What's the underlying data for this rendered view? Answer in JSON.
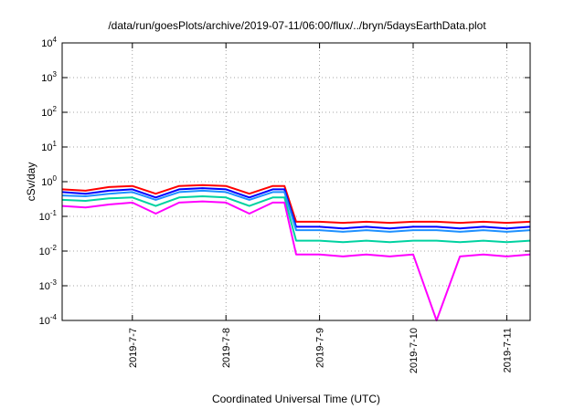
{
  "chart_data": {
    "type": "line",
    "title": "/data/run/goesPlots/archive/2019-07-11/06:00/flux/../bryn/5daysEarthData.plot",
    "xlabel": "Coordinated Universal Time (UTC)",
    "ylabel": "cSv/day",
    "y_scale": "log",
    "ylim": [
      0.0001,
      10000
    ],
    "y_ticks": [
      {
        "value": 0.0001,
        "base": "10",
        "exp": "-4"
      },
      {
        "value": 0.001,
        "base": "10",
        "exp": "-3"
      },
      {
        "value": 0.01,
        "base": "10",
        "exp": "-2"
      },
      {
        "value": 0.1,
        "base": "10",
        "exp": "-1"
      },
      {
        "value": 1,
        "base": "10",
        "exp": "0"
      },
      {
        "value": 10,
        "base": "10",
        "exp": "1"
      },
      {
        "value": 100,
        "base": "10",
        "exp": "2"
      },
      {
        "value": 1000,
        "base": "10",
        "exp": "3"
      },
      {
        "value": 10000,
        "base": "10",
        "exp": "4"
      }
    ],
    "x_type": "date",
    "xlim": [
      "2019-07-06T06:00",
      "2019-07-11T06:00"
    ],
    "x_ticks": [
      "2019-7-7",
      "2019-7-8",
      "2019-7-9",
      "2019-7-10",
      "2019-7-11"
    ],
    "x_tick_dates": [
      "2019-07-07",
      "2019-07-08",
      "2019-07-09",
      "2019-07-10",
      "2019-07-11"
    ],
    "grid": true,
    "x": [
      "2019-07-06T06:00",
      "2019-07-06T12:00",
      "2019-07-06T18:00",
      "2019-07-07T00:00",
      "2019-07-07T06:00",
      "2019-07-07T12:00",
      "2019-07-07T18:00",
      "2019-07-08T00:00",
      "2019-07-08T06:00",
      "2019-07-08T12:00",
      "2019-07-08T15:00",
      "2019-07-08T18:00",
      "2019-07-09T00:00",
      "2019-07-09T06:00",
      "2019-07-09T12:00",
      "2019-07-09T18:00",
      "2019-07-10T00:00",
      "2019-07-10T06:00",
      "2019-07-10T12:00",
      "2019-07-10T18:00",
      "2019-07-11T00:00",
      "2019-07-11T06:00"
    ],
    "series": [
      {
        "color": "#ff0000",
        "values": [
          0.6,
          0.55,
          0.7,
          0.75,
          0.45,
          0.75,
          0.8,
          0.75,
          0.45,
          0.75,
          0.75,
          0.07,
          0.07,
          0.065,
          0.07,
          0.065,
          0.07,
          0.07,
          0.065,
          0.07,
          0.065,
          0.07
        ]
      },
      {
        "color": "#0000ff",
        "values": [
          0.5,
          0.45,
          0.55,
          0.6,
          0.35,
          0.6,
          0.65,
          0.6,
          0.35,
          0.6,
          0.6,
          0.05,
          0.05,
          0.045,
          0.05,
          0.045,
          0.05,
          0.05,
          0.045,
          0.05,
          0.045,
          0.05
        ]
      },
      {
        "color": "#1e90ff",
        "values": [
          0.4,
          0.38,
          0.45,
          0.5,
          0.3,
          0.5,
          0.55,
          0.5,
          0.3,
          0.5,
          0.5,
          0.04,
          0.04,
          0.036,
          0.04,
          0.036,
          0.04,
          0.04,
          0.036,
          0.04,
          0.036,
          0.04
        ]
      },
      {
        "color": "#00d2a0",
        "values": [
          0.3,
          0.28,
          0.33,
          0.35,
          0.2,
          0.35,
          0.38,
          0.35,
          0.2,
          0.35,
          0.35,
          0.02,
          0.02,
          0.018,
          0.02,
          0.018,
          0.02,
          0.02,
          0.018,
          0.02,
          0.018,
          0.02
        ]
      },
      {
        "color": "#ff00ff",
        "values": [
          0.2,
          0.18,
          0.22,
          0.25,
          0.12,
          0.25,
          0.27,
          0.25,
          0.12,
          0.25,
          0.25,
          0.008,
          0.008,
          0.007,
          0.008,
          0.007,
          0.008,
          0.0001,
          0.007,
          0.008,
          0.007,
          0.008
        ]
      }
    ]
  }
}
